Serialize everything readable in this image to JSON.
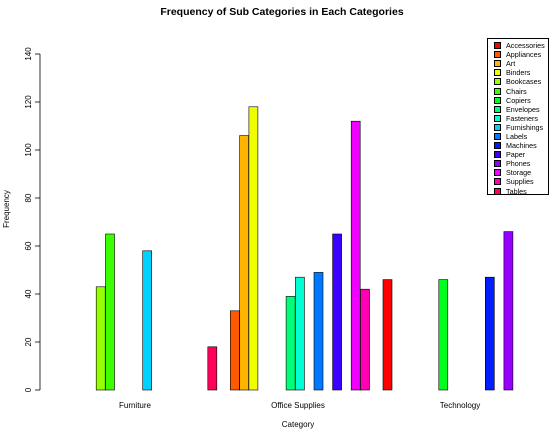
{
  "chart_data": {
    "type": "bar",
    "title": "Frequency of Sub Categories in Each Categories",
    "xlabel": "Category",
    "ylabel": "Frequency",
    "ylim": [
      0,
      140
    ],
    "yticks": [
      "0",
      "20",
      "40",
      "60",
      "80",
      "100",
      "120",
      "140"
    ],
    "categories": [
      "Furniture",
      "Office Supplies",
      "Technology"
    ],
    "legend_position": "top-right",
    "series": [
      {
        "name": "Accessories",
        "color": "#FF0000",
        "values": [
          0,
          0,
          46
        ]
      },
      {
        "name": "Appliances",
        "color": "#FF5A00",
        "values": [
          0,
          33,
          0
        ]
      },
      {
        "name": "Art",
        "color": "#FFB400",
        "values": [
          0,
          106,
          0
        ]
      },
      {
        "name": "Binders",
        "color": "#F0FF00",
        "values": [
          0,
          118,
          0
        ]
      },
      {
        "name": "Bookcases",
        "color": "#96FF00",
        "values": [
          43,
          0,
          0
        ]
      },
      {
        "name": "Chairs",
        "color": "#3CFF00",
        "values": [
          65,
          0,
          0
        ]
      },
      {
        "name": "Copiers",
        "color": "#00FF1E",
        "values": [
          0,
          0,
          46
        ]
      },
      {
        "name": "Envelopes",
        "color": "#00FF78",
        "values": [
          0,
          39,
          0
        ]
      },
      {
        "name": "Fasteners",
        "color": "#00FFD2",
        "values": [
          0,
          47,
          0
        ]
      },
      {
        "name": "Furnishings",
        "color": "#00D2FF",
        "values": [
          58,
          0,
          0
        ]
      },
      {
        "name": "Labels",
        "color": "#0078FF",
        "values": [
          0,
          49,
          0
        ]
      },
      {
        "name": "Machines",
        "color": "#001EFF",
        "values": [
          0,
          0,
          47
        ]
      },
      {
        "name": "Paper",
        "color": "#3C00FF",
        "values": [
          0,
          65,
          0
        ]
      },
      {
        "name": "Phones",
        "color": "#9600FF",
        "values": [
          0,
          0,
          66
        ]
      },
      {
        "name": "Storage",
        "color": "#F000FF",
        "values": [
          0,
          112,
          0
        ]
      },
      {
        "name": "Supplies",
        "color": "#FF00B4",
        "values": [
          0,
          42,
          0
        ]
      },
      {
        "name": "Tables",
        "color": "#FF005A",
        "values": [
          18,
          0,
          0
        ]
      }
    ]
  }
}
